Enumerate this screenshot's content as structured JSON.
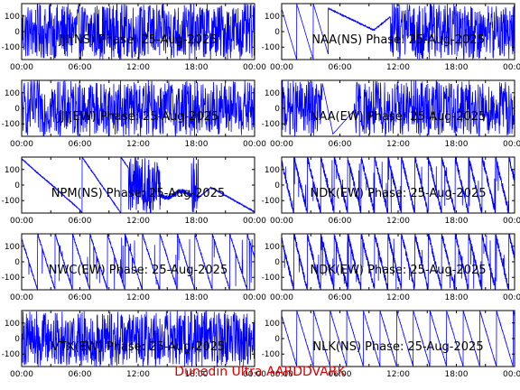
{
  "footer": "Dunedin Ultra AARDDVARK",
  "colors": {
    "trace": "#0000ff",
    "axes": "#000000",
    "footer": "#d40000",
    "background": "#ffffff"
  },
  "chart_data": [
    {
      "type": "line",
      "title": "JJI(NS) Phase: 25-Aug-2025",
      "station": "JJI",
      "component": "NS",
      "style": "dense_full_day",
      "xlim": [
        0,
        24
      ],
      "ylim": [
        -180,
        180
      ],
      "yticks": [
        100,
        0,
        -100
      ],
      "xtick_labels": [
        "00:00",
        "06:00",
        "12:00",
        "18:00",
        "00:00"
      ]
    },
    {
      "type": "line",
      "title": "NAA(NS) Phase: 25-Aug-2025",
      "station": "NAA",
      "component": "NS",
      "style": "wraps_then_drift_then_dense",
      "xlim": [
        0,
        24
      ],
      "ylim": [
        -180,
        180
      ],
      "yticks": [
        100,
        0,
        -100
      ],
      "xtick_labels": [
        "00:00",
        "06:00",
        "12:00",
        "18:00",
        "00:00"
      ]
    },
    {
      "type": "line",
      "title": "JJI(EW) Phase: 25-Aug-2025",
      "station": "JJI",
      "component": "EW",
      "style": "dense_full_day",
      "xlim": [
        0,
        24
      ],
      "ylim": [
        -180,
        180
      ],
      "yticks": [
        100,
        0,
        -100
      ],
      "xtick_labels": [
        "00:00",
        "06:00",
        "12:00",
        "18:00",
        "00:00"
      ]
    },
    {
      "type": "line",
      "title": "NAA(EW) Phase: 25-Aug-2025",
      "station": "NAA",
      "component": "EW",
      "style": "dense_with_gap",
      "xlim": [
        0,
        24
      ],
      "ylim": [
        -180,
        180
      ],
      "yticks": [
        100,
        0,
        -100
      ],
      "xtick_labels": [
        "00:00",
        "06:00",
        "12:00",
        "18:00",
        "00:00"
      ]
    },
    {
      "type": "line",
      "title": "NPM(NS) Phase: 25-Aug-2025",
      "station": "NPM",
      "component": "NS",
      "style": "slow_drift",
      "xlim": [
        0,
        24
      ],
      "ylim": [
        -180,
        180
      ],
      "yticks": [
        100,
        0,
        -100
      ],
      "xtick_labels": [
        "00:00",
        "06:00",
        "12:00",
        "18:00",
        "00:00"
      ]
    },
    {
      "type": "line",
      "title": "NDK(EW) Phase: 25-Aug-2025",
      "station": "NDK",
      "component": "EW",
      "style": "sawtooth_dense",
      "xlim": [
        0,
        24
      ],
      "ylim": [
        -180,
        180
      ],
      "yticks": [
        100,
        0,
        -100
      ],
      "xtick_labels": [
        "00:00",
        "06:00",
        "12:00",
        "18:00",
        "00:00"
      ]
    },
    {
      "type": "line",
      "title": "NWC(EW) Phase: 25-Aug-2025",
      "station": "NWC",
      "component": "EW",
      "style": "sawtooth_medium",
      "xlim": [
        0,
        24
      ],
      "ylim": [
        -180,
        180
      ],
      "yticks": [
        100,
        0,
        -100
      ],
      "xtick_labels": [
        "00:00",
        "06:00",
        "12:00",
        "18:00",
        "00:00"
      ]
    },
    {
      "type": "line",
      "title": "NDK(EW) Phase: 25-Aug-2025",
      "station": "NDK",
      "component": "EW",
      "style": "sawtooth_dense",
      "xlim": [
        0,
        24
      ],
      "ylim": [
        -180,
        180
      ],
      "yticks": [
        100,
        0,
        -100
      ],
      "xtick_labels": [
        "00:00",
        "06:00",
        "12:00",
        "18:00",
        "00:00"
      ]
    },
    {
      "type": "line",
      "title": "VTX(EW) Phase: 25-Aug-2025",
      "station": "VTX",
      "component": "EW",
      "style": "noise_full_day",
      "xlim": [
        0,
        24
      ],
      "ylim": [
        -180,
        180
      ],
      "yticks": [
        100,
        0,
        -100
      ],
      "xtick_labels": [
        "00:00",
        "06:00",
        "12:00",
        "18:00",
        "00:00"
      ]
    },
    {
      "type": "line",
      "title": "NLK(NS) Phase: 25-Aug-2025",
      "station": "NLK",
      "component": "NS",
      "style": "sawtooth_regular",
      "xlim": [
        0,
        24
      ],
      "ylim": [
        -180,
        180
      ],
      "yticks": [
        100,
        0,
        -100
      ],
      "xtick_labels": [
        "00:00",
        "06:00",
        "12:00",
        "18:00",
        "00:00"
      ]
    }
  ]
}
